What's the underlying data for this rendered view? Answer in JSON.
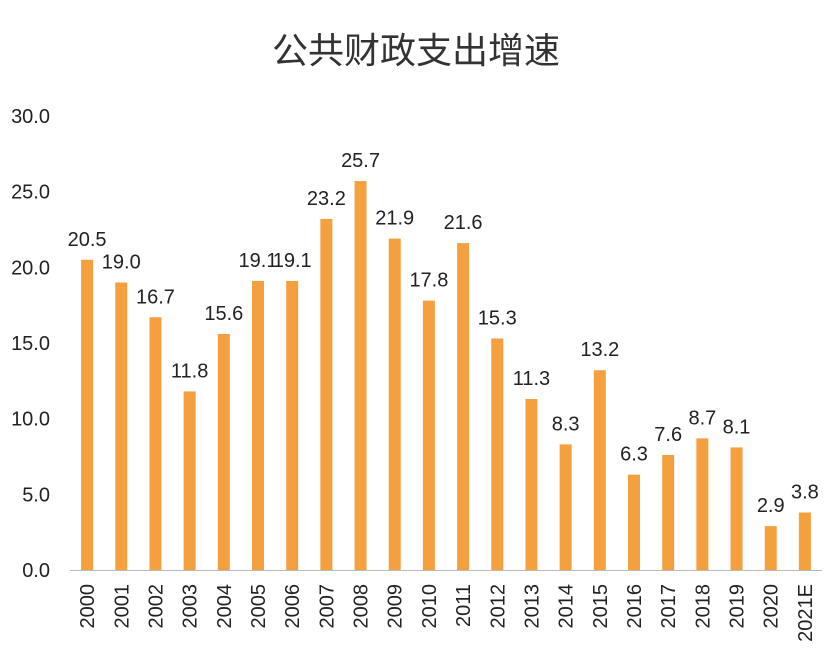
{
  "chart_data": {
    "type": "bar",
    "title": "公共财政支出增速",
    "xlabel": "",
    "ylabel": "",
    "ylim": [
      0,
      30
    ],
    "yticks": [
      "0.0",
      "5.0",
      "10.0",
      "15.0",
      "20.0",
      "25.0",
      "30.0"
    ],
    "grid": false,
    "bar_color": "#F5A03F",
    "categories": [
      "2000",
      "2001",
      "2002",
      "2003",
      "2004",
      "2005",
      "2006",
      "2007",
      "2008",
      "2009",
      "2010",
      "2011",
      "2012",
      "2013",
      "2014",
      "2015",
      "2016",
      "2017",
      "2018",
      "2019",
      "2020",
      "2021E"
    ],
    "values": [
      20.5,
      19.0,
      16.7,
      11.8,
      15.6,
      19.1,
      19.1,
      23.2,
      25.7,
      21.9,
      17.8,
      21.6,
      15.3,
      11.3,
      8.3,
      13.2,
      6.3,
      7.6,
      8.7,
      8.1,
      2.9,
      3.8
    ],
    "data_labels": [
      "20.5",
      "19.0",
      "16.7",
      "11.8",
      "15.6",
      "19.1",
      "19.1",
      "23.2",
      "25.7",
      "21.9",
      "17.8",
      "21.6",
      "15.3",
      "11.3",
      "8.3",
      "13.2",
      "6.3",
      "7.6",
      "8.7",
      "8.1",
      "2.9",
      "3.8"
    ]
  }
}
